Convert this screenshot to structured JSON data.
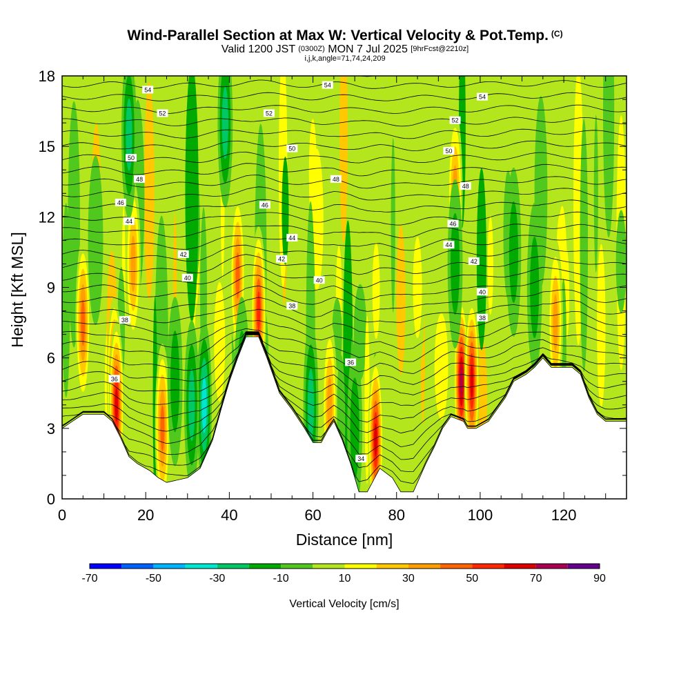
{
  "header": {
    "title": "Wind-Parallel Section at Max W: Vertical Velocity & Pot.Temp.",
    "title_tag": "(C)",
    "valid_prefix": "Valid 1200 JST",
    "valid_utc": "(0300Z)",
    "valid_date": "MON 7 Jul 2025",
    "forecast": "[9hrFcst@2210z]",
    "ijk": "i,j,k,angle=71,74,24,209"
  },
  "colors": {
    "palette": [
      "#0000ff",
      "#0060ff",
      "#00b4ff",
      "#00e6d2",
      "#00c864",
      "#00aa00",
      "#50c81e",
      "#b4e61e",
      "#ffff00",
      "#ffc800",
      "#ffa000",
      "#ff6400",
      "#ff2800",
      "#dc0000",
      "#aa0050",
      "#64008c"
    ],
    "terrain": "#ffffff",
    "contour": "#000000"
  },
  "chart_data": {
    "type": "heatmap",
    "xlabel": "Distance [nm]",
    "ylabel": "Height [Kft MSL]",
    "xlim": [
      0,
      135
    ],
    "ylim": [
      0,
      18
    ],
    "x_ticks": [
      "0",
      "20",
      "40",
      "60",
      "80",
      "100",
      "120"
    ],
    "x_tick_values": [
      0,
      20,
      40,
      60,
      80,
      100,
      120
    ],
    "y_ticks": [
      "0",
      "3",
      "6",
      "9",
      "12",
      "15",
      "18"
    ],
    "y_tick_values": [
      0,
      3,
      6,
      9,
      12,
      15,
      18
    ],
    "colorbar": {
      "title": "Vertical Velocity [cm/s]",
      "levels": [
        -70,
        -60,
        -50,
        -40,
        -30,
        -20,
        -10,
        0,
        10,
        20,
        30,
        40,
        50,
        60,
        70,
        80,
        90
      ],
      "labels": [
        "-70",
        "-50",
        "-30",
        "-10",
        "10",
        "30",
        "50",
        "70",
        "90"
      ],
      "label_values": [
        -70,
        -50,
        -30,
        -10,
        10,
        30,
        50,
        70,
        90
      ]
    },
    "terrain_kft": [
      [
        0,
        3.0
      ],
      [
        2.5,
        3.3
      ],
      [
        5,
        3.6
      ],
      [
        10,
        3.6
      ],
      [
        12,
        3.3
      ],
      [
        14,
        2.6
      ],
      [
        16,
        1.8
      ],
      [
        18,
        1.5
      ],
      [
        21,
        1.2
      ],
      [
        23,
        0.9
      ],
      [
        25,
        0.7
      ],
      [
        30,
        0.9
      ],
      [
        33,
        1.3
      ],
      [
        36,
        2.5
      ],
      [
        38,
        3.8
      ],
      [
        40,
        5.0
      ],
      [
        42,
        6.0
      ],
      [
        44,
        6.9
      ],
      [
        47,
        6.9
      ],
      [
        49,
        6.0
      ],
      [
        52,
        4.5
      ],
      [
        55,
        3.8
      ],
      [
        58,
        3.0
      ],
      [
        60,
        2.4
      ],
      [
        62,
        2.4
      ],
      [
        63.5,
        2.9
      ],
      [
        65,
        3.3
      ],
      [
        67,
        2.5
      ],
      [
        69,
        1.5
      ],
      [
        71,
        0.3
      ],
      [
        73,
        0.3
      ],
      [
        76,
        1.3
      ],
      [
        79,
        0.9
      ],
      [
        81,
        0.3
      ],
      [
        84,
        0.3
      ],
      [
        87,
        1.5
      ],
      [
        89,
        2.2
      ],
      [
        91,
        3.0
      ],
      [
        93,
        3.5
      ],
      [
        96,
        3.3
      ],
      [
        97,
        3.0
      ],
      [
        99,
        3.0
      ],
      [
        102,
        3.3
      ],
      [
        106,
        4.3
      ],
      [
        108,
        5.0
      ],
      [
        111,
        5.3
      ],
      [
        113,
        5.6
      ],
      [
        115,
        6.0
      ],
      [
        117,
        5.6
      ],
      [
        122,
        5.6
      ],
      [
        124,
        5.3
      ],
      [
        126,
        4.3
      ],
      [
        128,
        3.6
      ],
      [
        130,
        3.3
      ],
      [
        135,
        3.3
      ]
    ],
    "w_cells": [
      {
        "x": 5,
        "z": 7.5,
        "w": 55
      },
      {
        "x": 12.5,
        "z": 5,
        "w": 70
      },
      {
        "x": 13,
        "z": 4,
        "w": 70
      },
      {
        "x": 17,
        "z": 10,
        "w": 40
      },
      {
        "x": 24,
        "z": 3,
        "w": 50
      },
      {
        "x": 42,
        "z": 9.5,
        "w": 50
      },
      {
        "x": 47,
        "z": 8,
        "w": 60
      },
      {
        "x": 64,
        "z": 4,
        "w": 45
      },
      {
        "x": 75,
        "z": 2.5,
        "w": 70
      },
      {
        "x": 95.5,
        "z": 5,
        "w": 85
      },
      {
        "x": 98,
        "z": 5,
        "w": 70
      },
      {
        "x": 94,
        "z": 13,
        "w": 40
      },
      {
        "x": 118,
        "z": 7.5,
        "w": 45
      },
      {
        "x": 85,
        "z": 9,
        "w": 20
      },
      {
        "x": 34,
        "z": 4,
        "w": -45
      },
      {
        "x": 31,
        "z": 4,
        "w": -30
      },
      {
        "x": 39,
        "z": 16,
        "w": -30
      },
      {
        "x": 16,
        "z": 15.5,
        "w": -30
      },
      {
        "x": 59.5,
        "z": 4,
        "w": -35
      },
      {
        "x": 43,
        "z": 5,
        "w": -20
      },
      {
        "x": 94,
        "z": 10,
        "w": -25
      },
      {
        "x": 108,
        "z": 10.5,
        "w": -25
      },
      {
        "x": 113,
        "z": 9,
        "w": -25
      },
      {
        "x": 70,
        "z": 3,
        "w": -20
      },
      {
        "x": 27,
        "z": 5,
        "w": -20
      },
      {
        "x": 8,
        "z": 11,
        "w": -12
      }
    ],
    "theta_labels": [
      {
        "x": 20.5,
        "z": 17.4,
        "text": "54"
      },
      {
        "x": 63.5,
        "z": 17.6,
        "text": "54"
      },
      {
        "x": 100.5,
        "z": 17.1,
        "text": "54"
      },
      {
        "x": 24,
        "z": 16.4,
        "text": "52"
      },
      {
        "x": 49.5,
        "z": 16.4,
        "text": "52"
      },
      {
        "x": 94,
        "z": 16.1,
        "text": "52"
      },
      {
        "x": 16.5,
        "z": 14.5,
        "text": "50"
      },
      {
        "x": 55,
        "z": 14.9,
        "text": "50"
      },
      {
        "x": 92.5,
        "z": 14.8,
        "text": "50"
      },
      {
        "x": 18.5,
        "z": 13.6,
        "text": "48"
      },
      {
        "x": 65.5,
        "z": 13.6,
        "text": "48"
      },
      {
        "x": 96.5,
        "z": 13.3,
        "text": "48"
      },
      {
        "x": 14,
        "z": 12.6,
        "text": "46"
      },
      {
        "x": 48.5,
        "z": 12.5,
        "text": "46"
      },
      {
        "x": 93.5,
        "z": 11.7,
        "text": "46"
      },
      {
        "x": 16,
        "z": 11.8,
        "text": "44"
      },
      {
        "x": 55,
        "z": 11.1,
        "text": "44"
      },
      {
        "x": 92.5,
        "z": 10.8,
        "text": "44"
      },
      {
        "x": 29,
        "z": 10.4,
        "text": "42"
      },
      {
        "x": 52.5,
        "z": 10.2,
        "text": "42"
      },
      {
        "x": 98.5,
        "z": 10.1,
        "text": "42"
      },
      {
        "x": 30,
        "z": 9.4,
        "text": "40"
      },
      {
        "x": 61.5,
        "z": 9.3,
        "text": "40"
      },
      {
        "x": 100.5,
        "z": 8.8,
        "text": "40"
      },
      {
        "x": 15,
        "z": 7.6,
        "text": "38"
      },
      {
        "x": 55,
        "z": 8.2,
        "text": "38"
      },
      {
        "x": 100.5,
        "z": 7.7,
        "text": "38"
      },
      {
        "x": 12.5,
        "z": 5.1,
        "text": "36"
      },
      {
        "x": 69,
        "z": 5.8,
        "text": "36"
      },
      {
        "x": 71.5,
        "z": 1.7,
        "text": "34"
      }
    ]
  }
}
